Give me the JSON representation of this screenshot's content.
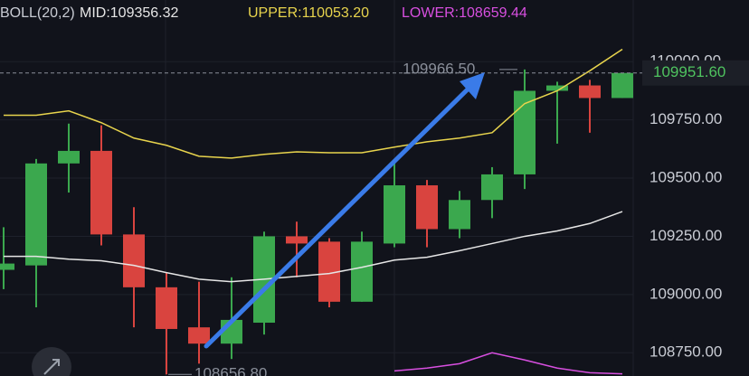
{
  "chart_data": {
    "type": "candlestick",
    "legend_labels": [
      {
        "text": "BOLL(20,2)",
        "color": "#c9ccd4"
      },
      {
        "text": "MID:109356.32",
        "color": "#e6e6e6"
      },
      {
        "text": "UPPER:110053.20",
        "color": "#e8d44d"
      },
      {
        "text": "LOWER:108659.44",
        "color": "#d84fe0"
      }
    ],
    "up_color": "#3ba84e",
    "down_color": "#d9443f",
    "open": [
      109106,
      109125,
      109563,
      109617,
      109258,
      109031,
      108859,
      108789,
      108879,
      109250,
      109227,
      108969,
      109219,
      109469,
      109281,
      109406,
      109516,
      109875,
      109898,
      109844
    ],
    "close": [
      109133,
      109563,
      109617,
      109258,
      109031,
      108852,
      108789,
      108891,
      109250,
      109219,
      108969,
      109227,
      109469,
      109281,
      109406,
      109516,
      109875,
      109898,
      109844,
      109951.6
    ],
    "high": [
      109289,
      109582,
      109734,
      109727,
      109375,
      109094,
      109055,
      109074,
      109270,
      109313,
      109242,
      109270,
      109582,
      109492,
      109445,
      109547,
      109966.5,
      109914,
      109922,
      109951.6
    ],
    "low": [
      109023,
      108945,
      109438,
      109211,
      108859,
      108656.8,
      108703,
      108723,
      108828,
      109074,
      108945,
      108969,
      109203,
      109203,
      109242,
      109328,
      109453,
      109648,
      109695,
      109844
    ],
    "series": [
      {
        "name": "UPPER",
        "color": "#e8d44d",
        "values": [
          109770,
          109770,
          109789,
          109738,
          109672,
          109641,
          109594,
          109586,
          109602,
          109613,
          109609,
          109609,
          109633,
          109656,
          109672,
          109695,
          109820,
          109875,
          109961,
          110053.2
        ]
      },
      {
        "name": "MID",
        "color": "#e6e6e6",
        "values": [
          109164,
          109164,
          109152,
          109145,
          109125,
          109094,
          109066,
          109055,
          109066,
          109078,
          109090,
          109117,
          109148,
          109160,
          109188,
          109219,
          109250,
          109273,
          109305,
          109356.32
        ]
      },
      {
        "name": "LOWER",
        "color": "#d84fe0",
        "values": [
          null,
          null,
          null,
          null,
          null,
          null,
          null,
          null,
          null,
          null,
          null,
          null,
          108672,
          108684,
          108703,
          108750,
          108719,
          108684,
          108664,
          108659.44
        ]
      }
    ],
    "ylim": [
      108650,
      110265
    ],
    "yticks": [
      {
        "value": 108750,
        "label": "108750.00"
      },
      {
        "value": 109000,
        "label": "109000.00"
      },
      {
        "value": 109250,
        "label": "109250.00"
      },
      {
        "value": 109500,
        "label": "109500.00"
      },
      {
        "value": 109750,
        "label": "109750.00"
      },
      {
        "value": 110000,
        "label": "110000.00"
      }
    ],
    "grid": true,
    "last_price": {
      "value": 109951.6,
      "label": "109951.60"
    },
    "annotations": [
      {
        "value": 109966.5,
        "label": "109966.50"
      },
      {
        "value": 108656.8,
        "label": "108656.80"
      }
    ]
  }
}
